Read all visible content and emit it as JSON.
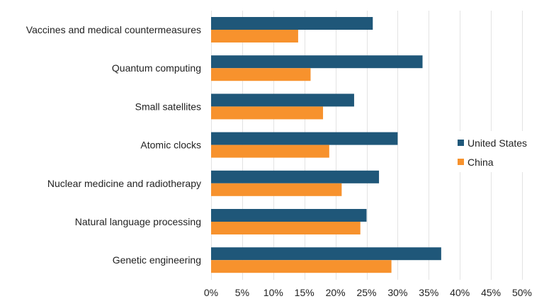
{
  "chart_data": {
    "type": "bar",
    "orientation": "horizontal",
    "title": "",
    "xlabel": "",
    "ylabel": "",
    "categories": [
      "Vaccines and medical countermeasures",
      "Quantum computing",
      "Small satellites",
      "Atomic clocks",
      "Nuclear medicine and radiotherapy",
      "Natural language processing",
      "Genetic engineering"
    ],
    "series": [
      {
        "name": "United States",
        "color": "#1f5779",
        "values": [
          26,
          34,
          23,
          30,
          27,
          25,
          37
        ]
      },
      {
        "name": "China",
        "color": "#f7922d",
        "values": [
          14,
          16,
          18,
          19,
          21,
          24,
          29
        ]
      }
    ],
    "xlim": [
      0,
      50
    ],
    "x_ticks": [
      0,
      5,
      10,
      15,
      20,
      25,
      30,
      35,
      40,
      45,
      50
    ],
    "tick_suffix": "%",
    "grid": true,
    "legend_position": "right"
  }
}
